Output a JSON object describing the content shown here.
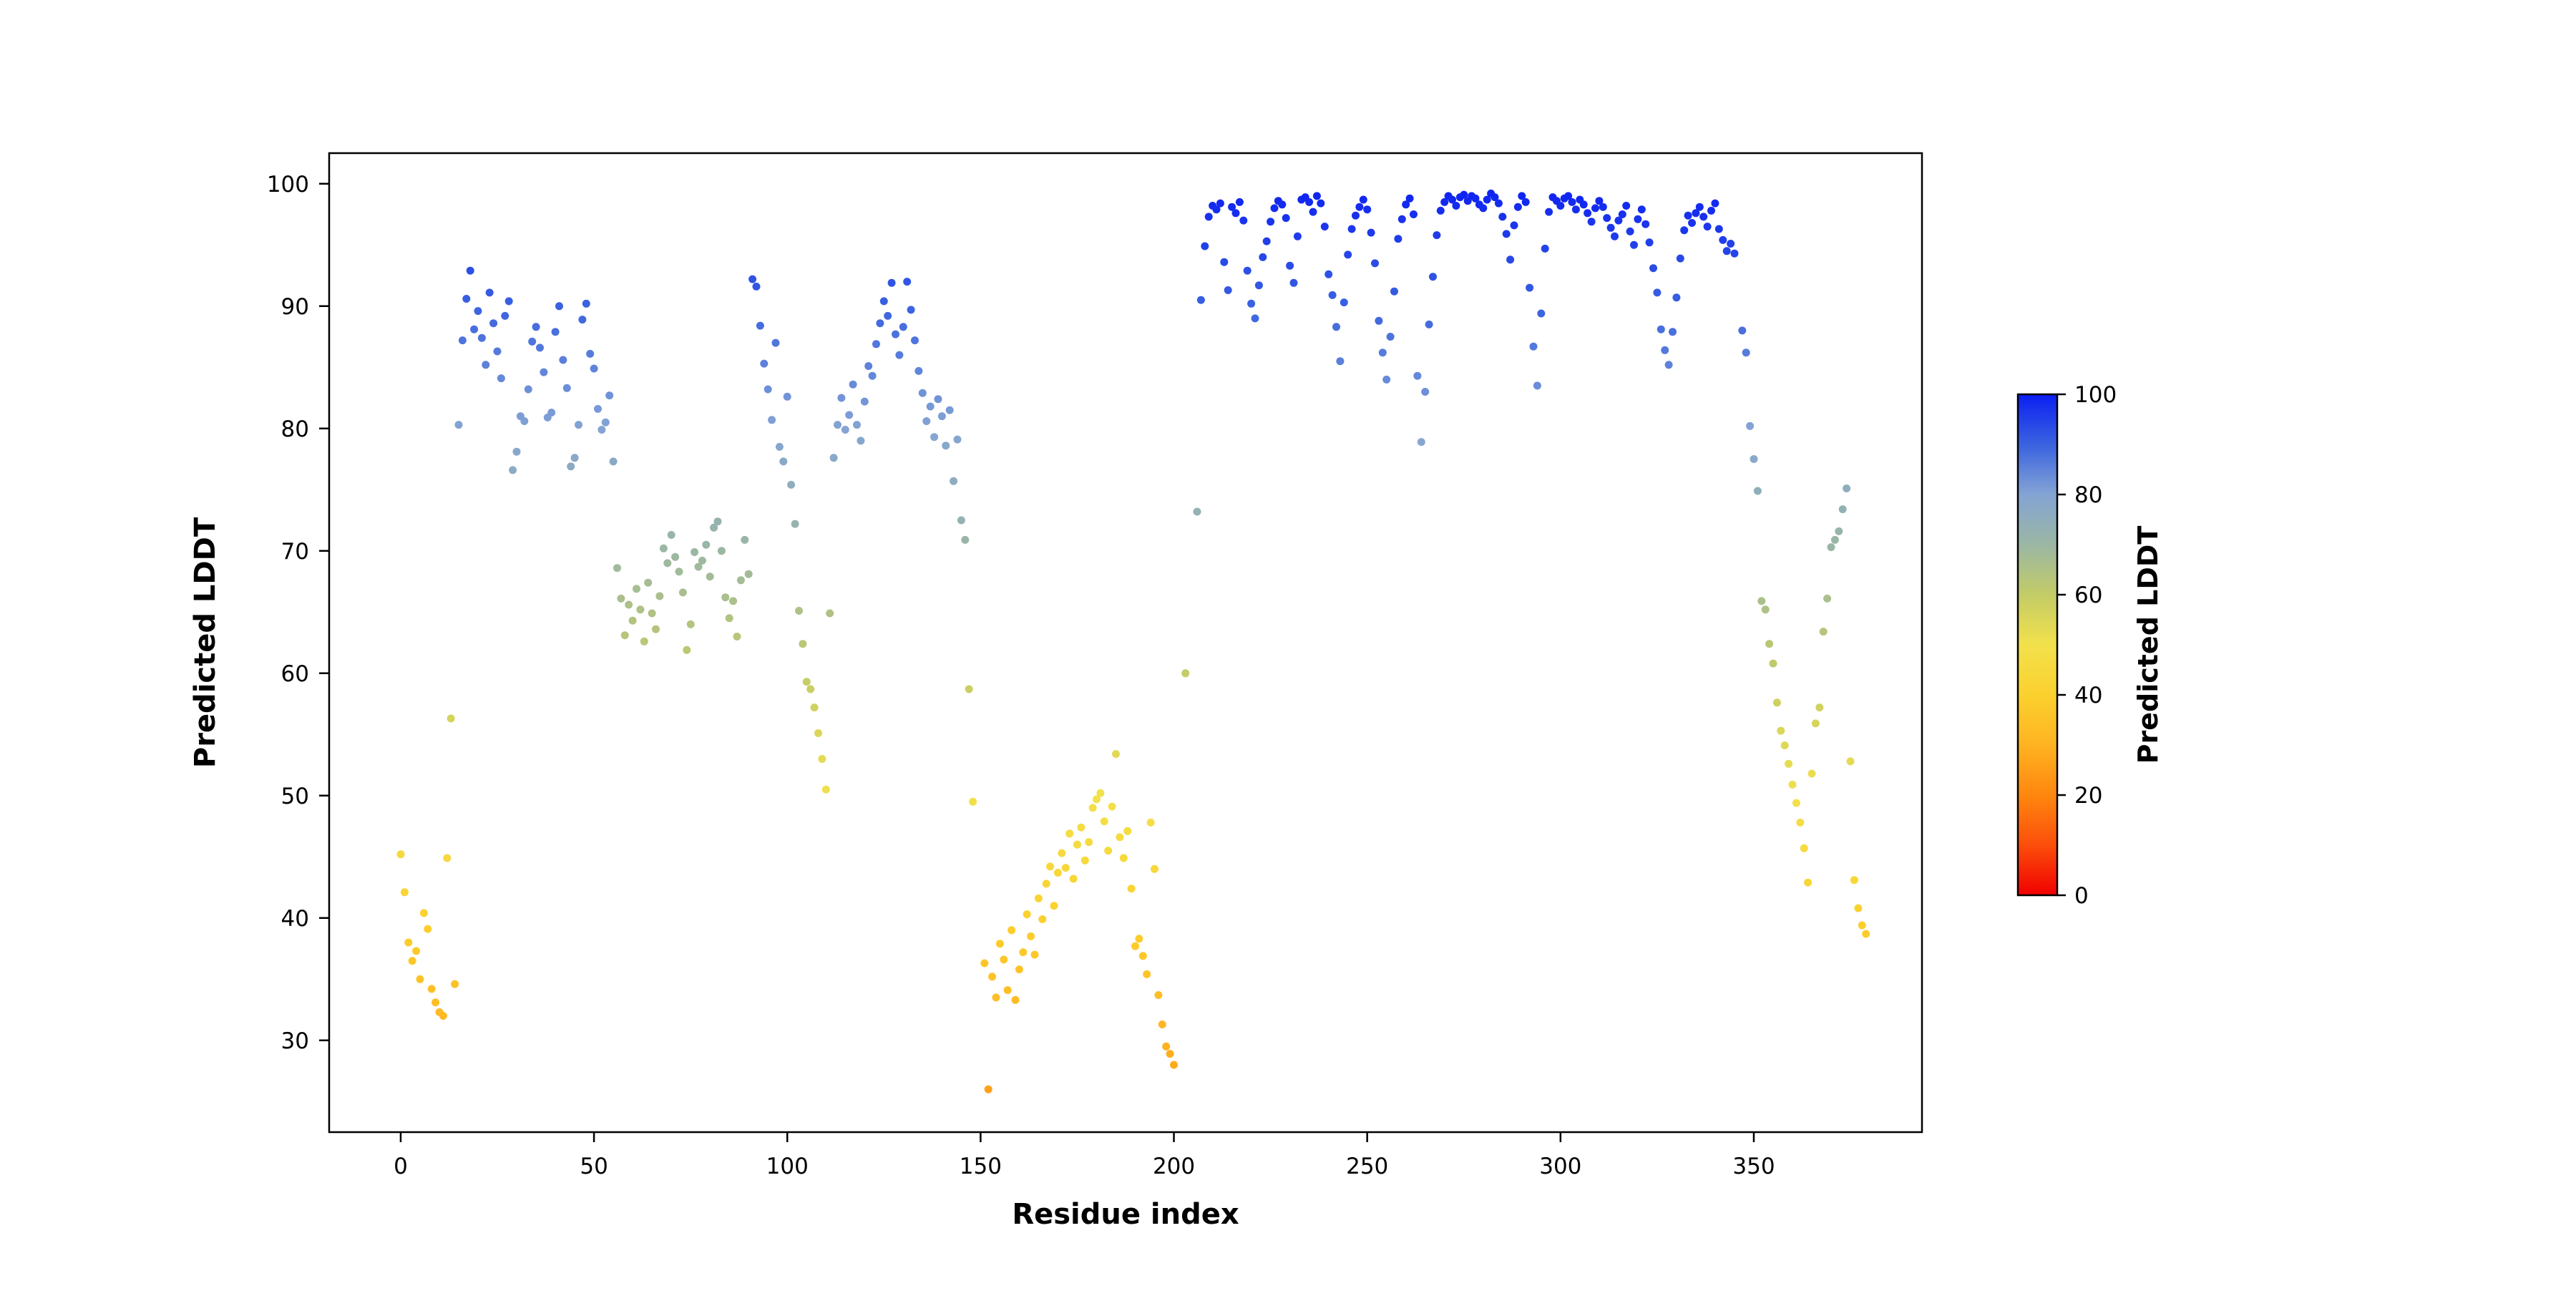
{
  "page": {
    "background": "#ffffff"
  },
  "chart_data": {
    "type": "scatter",
    "title": "",
    "xlabel": "Residue index",
    "ylabel": "Predicted LDDT",
    "xlim": [
      -18.5,
      393.5
    ],
    "ylim": [
      22.5,
      102.5
    ],
    "xticks": [
      0,
      50,
      100,
      150,
      200,
      250,
      300,
      350
    ],
    "yticks": [
      30,
      40,
      50,
      60,
      70,
      80,
      90,
      100
    ],
    "grid": false,
    "legend": "none",
    "marker": {
      "radius_px": 5.5,
      "color_by": "y_value"
    },
    "colorbar": {
      "label": "Predicted LDDT",
      "ticks": [
        0,
        20,
        40,
        60,
        80,
        100
      ],
      "vmin": 0,
      "vmax": 100,
      "position": "right"
    },
    "colormap_stops": [
      {
        "t": 0.0,
        "c": "#f10000"
      },
      {
        "t": 0.1,
        "c": "#fb4e0b"
      },
      {
        "t": 0.2,
        "c": "#ff870f"
      },
      {
        "t": 0.3,
        "c": "#ffb321"
      },
      {
        "t": 0.4,
        "c": "#fbd12e"
      },
      {
        "t": 0.5,
        "c": "#f2e14c"
      },
      {
        "t": 0.6,
        "c": "#c3cc66"
      },
      {
        "t": 0.7,
        "c": "#9bb7a4"
      },
      {
        "t": 0.8,
        "c": "#84a4d4"
      },
      {
        "t": 0.9,
        "c": "#3a62e0"
      },
      {
        "t": 1.0,
        "c": "#0b1ff2"
      }
    ],
    "segments": [
      {
        "x_start": 0,
        "x_step": 1,
        "y": [
          45.2,
          42.1,
          38.0,
          36.5,
          37.3,
          35.0,
          40.4,
          39.1,
          34.2,
          33.1,
          32.3,
          32.0,
          44.9,
          56.3,
          34.6
        ]
      },
      {
        "x_start": 15,
        "x_step": 1,
        "y": [
          80.3,
          87.2,
          90.6,
          92.9,
          88.1,
          89.6,
          87.4,
          85.2,
          91.1,
          88.6,
          86.3,
          84.1,
          89.2,
          90.4,
          76.6,
          78.1,
          81.0,
          80.6,
          83.2,
          87.1,
          88.3,
          86.6,
          84.6,
          80.9,
          81.3,
          87.9,
          90.0,
          85.6,
          83.3,
          76.9,
          77.6,
          80.3,
          88.9,
          90.2,
          86.1,
          84.9,
          81.6,
          79.9,
          80.5,
          82.7,
          77.3
        ]
      },
      {
        "x_start": 56,
        "x_step": 1,
        "y": [
          68.6,
          66.1,
          63.1,
          65.6,
          64.3,
          66.9,
          65.2,
          62.6,
          67.4,
          64.9,
          63.6,
          66.3,
          70.2,
          69.0,
          71.3,
          69.5,
          68.3,
          66.6,
          61.9,
          64.0,
          69.9,
          68.7,
          69.2,
          70.5,
          67.9,
          71.9,
          72.4,
          70.0,
          66.2,
          64.5,
          65.9,
          63.0,
          67.6,
          70.9,
          68.1
        ]
      },
      {
        "x_start": 91,
        "x_step": 1,
        "y": [
          92.2,
          91.6,
          88.4,
          85.3,
          83.2,
          80.7,
          87.0,
          78.5,
          77.3,
          82.6
        ]
      },
      {
        "x_start": 101,
        "x_step": 1,
        "y": [
          75.4,
          72.2,
          65.1,
          62.4,
          59.3,
          58.7,
          57.2,
          55.1,
          53.0,
          50.5,
          64.9,
          77.6,
          80.3,
          82.5,
          79.9
        ]
      },
      {
        "x_start": 116,
        "x_step": 1,
        "y": [
          81.1,
          83.6,
          80.3,
          79.0,
          82.2,
          85.1,
          84.3,
          86.9,
          88.6,
          90.4,
          89.2,
          91.9,
          87.7,
          86.0,
          88.3,
          92.0,
          89.7,
          87.2,
          84.7,
          82.9,
          80.6,
          81.8,
          79.3,
          82.4,
          81.0,
          78.6,
          81.5,
          75.7,
          79.1,
          72.5,
          70.9,
          58.7,
          49.5
        ]
      },
      {
        "x_start": 151,
        "x_step": 1,
        "y": [
          36.3,
          26.0,
          35.2,
          33.5,
          37.9,
          36.6,
          34.1,
          39.0,
          33.3,
          35.8,
          37.2,
          40.3,
          38.5,
          37.0,
          41.6,
          39.9,
          42.8,
          44.2,
          41.0,
          43.7,
          45.3,
          44.1,
          46.9,
          43.2,
          46.0,
          47.4,
          44.7,
          46.2,
          49.0,
          49.7,
          50.2,
          47.9,
          45.5,
          49.1,
          53.4,
          46.6,
          44.9,
          47.1,
          42.4,
          37.7,
          38.3,
          36.9,
          35.4,
          47.8,
          44.0,
          33.7,
          31.3,
          29.5,
          28.9,
          28.0
        ]
      },
      {
        "x_start": 207,
        "x_step": 1,
        "y": [
          90.5,
          94.9,
          97.3,
          98.2,
          97.9,
          98.4,
          93.6,
          91.3,
          98.1,
          97.6,
          98.5,
          97.0,
          92.9,
          90.2,
          89.0,
          91.7,
          94.0,
          95.3,
          96.9,
          98.0,
          98.6,
          98.3,
          97.2,
          93.3,
          91.9,
          95.7,
          98.7,
          98.9,
          98.5,
          97.7,
          99.0,
          98.4,
          96.5,
          92.6,
          90.9,
          88.3,
          85.5,
          90.3,
          94.2,
          96.3,
          97.4,
          98.1,
          98.7,
          97.9,
          96.0,
          93.5,
          88.8,
          86.2,
          84.0,
          87.5,
          91.2,
          95.5,
          97.1,
          98.3,
          98.8,
          97.5,
          84.3,
          78.9,
          83.0,
          88.5,
          92.4,
          95.8,
          97.8,
          98.5,
          99.0,
          98.7,
          98.2,
          98.9,
          99.1,
          98.6,
          99.0,
          98.8,
          98.3,
          98.0,
          98.7,
          99.2,
          98.9,
          98.4,
          97.3,
          95.9,
          93.8,
          96.6,
          98.1,
          99.0,
          98.5,
          91.5,
          86.7,
          83.5,
          89.4,
          94.7,
          97.7,
          98.9,
          98.6,
          98.2,
          98.8,
          99.0,
          98.5,
          97.9,
          98.7,
          98.3,
          97.6,
          96.9,
          98.0,
          98.6,
          98.1,
          97.2,
          96.4,
          95.7,
          97.0,
          97.5,
          98.2,
          96.1,
          95.0,
          97.1,
          97.9,
          96.7,
          95.2,
          93.1,
          91.1,
          88.1,
          86.4,
          85.2,
          87.9,
          90.7,
          93.9,
          96.2,
          97.4,
          96.8,
          97.6,
          98.1,
          97.3,
          96.5,
          97.8,
          98.4,
          96.3,
          95.4,
          94.5,
          95.1,
          94.3
        ]
      },
      {
        "x_start": 347,
        "x_step": 1,
        "y": [
          88.0,
          86.2,
          80.2,
          77.5,
          74.9,
          65.9,
          65.2,
          62.4,
          60.8,
          57.6,
          55.3,
          54.1,
          52.6,
          50.9,
          49.4,
          47.8,
          45.7,
          42.9,
          51.8,
          55.9,
          57.2,
          63.4,
          66.1,
          70.3,
          70.9,
          71.6,
          73.4,
          75.1,
          52.8,
          43.1,
          40.8,
          39.4,
          38.7
        ]
      }
    ],
    "extra_points": [
      [
        203,
        60.0
      ],
      [
        206,
        73.2
      ]
    ]
  }
}
